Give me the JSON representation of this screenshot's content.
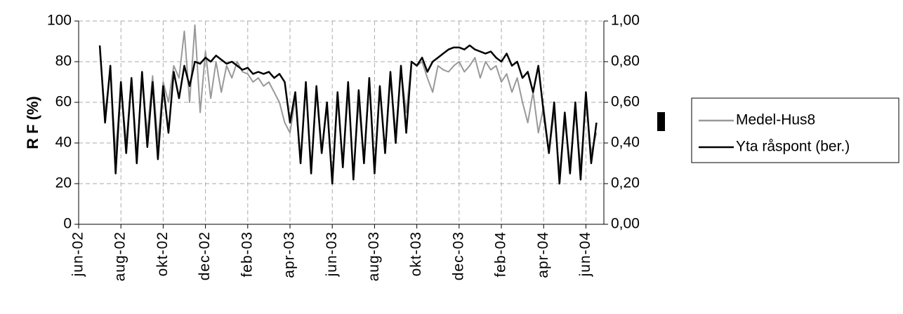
{
  "chart_data": {
    "type": "line",
    "y_label": "R F (%)",
    "x": [
      1,
      1.25,
      1.5,
      1.75,
      2,
      2.25,
      2.5,
      2.75,
      3,
      3.25,
      3.5,
      3.75,
      4,
      4.25,
      4.5,
      4.75,
      5,
      5.25,
      5.5,
      5.75,
      6,
      6.25,
      6.5,
      6.75,
      7,
      7.25,
      7.5,
      7.75,
      8,
      8.25,
      8.5,
      8.75,
      9,
      9.25,
      9.5,
      9.75,
      10,
      10.25,
      10.5,
      10.75,
      11,
      11.25,
      11.5,
      11.75,
      12,
      12.25,
      12.5,
      12.75,
      13,
      13.25,
      13.5,
      13.75,
      14,
      14.25,
      14.5,
      14.75,
      15,
      15.25,
      15.5,
      15.75,
      16,
      16.25,
      16.5,
      16.75,
      17,
      17.25,
      17.5,
      17.75,
      18,
      18.25,
      18.5,
      18.75,
      19,
      19.25,
      19.5,
      19.75,
      20,
      20.25,
      20.5,
      20.75,
      21,
      21.25,
      21.5,
      21.75,
      22,
      22.25,
      22.5,
      22.75,
      23,
      23.25,
      23.5,
      23.75,
      24,
      24.25,
      24.5
    ],
    "xlim": [
      0,
      24.85
    ],
    "xticks": [
      {
        "value": 0,
        "label": "jun-02"
      },
      {
        "value": 2,
        "label": "aug-02"
      },
      {
        "value": 4,
        "label": "okt-02"
      },
      {
        "value": 6,
        "label": "dec-02"
      },
      {
        "value": 8,
        "label": "feb-03"
      },
      {
        "value": 10,
        "label": "apr-03"
      },
      {
        "value": 12,
        "label": "jun-03"
      },
      {
        "value": 14,
        "label": "aug-03"
      },
      {
        "value": 16,
        "label": "okt-03"
      },
      {
        "value": 18,
        "label": "dec-03"
      },
      {
        "value": 20,
        "label": "feb-04"
      },
      {
        "value": 22,
        "label": "apr-04"
      },
      {
        "value": 24,
        "label": "jun-04"
      }
    ],
    "ylim": [
      0,
      100
    ],
    "yticks": [
      0,
      20,
      40,
      60,
      80,
      100
    ],
    "y2lim": [
      0,
      1
    ],
    "y2ticks": [
      {
        "value": 0,
        "label": "0,00"
      },
      {
        "value": 0.2,
        "label": "0,20"
      },
      {
        "value": 0.4,
        "label": "0,40"
      },
      {
        "value": 0.6,
        "label": "0,60"
      },
      {
        "value": 0.8,
        "label": "0,80"
      },
      {
        "value": 1,
        "label": "1,00"
      }
    ],
    "grid": true,
    "series": [
      {
        "name": "Medel-Hus8",
        "color": "#999999",
        "values": [
          85,
          55,
          75,
          35,
          68,
          40,
          72,
          35,
          70,
          45,
          73,
          40,
          70,
          60,
          78,
          72,
          95,
          60,
          98,
          55,
          85,
          62,
          80,
          65,
          78,
          72,
          80,
          75,
          74,
          70,
          72,
          68,
          70,
          65,
          60,
          50,
          45,
          62,
          30,
          68,
          28,
          65,
          35,
          58,
          22,
          62,
          30,
          65,
          25,
          60,
          30,
          70,
          28,
          66,
          35,
          72,
          45,
          76,
          55,
          80,
          78,
          80,
          72,
          65,
          78,
          76,
          75,
          78,
          80,
          75,
          78,
          82,
          72,
          80,
          76,
          78,
          70,
          74,
          65,
          72,
          60,
          50,
          65,
          45,
          58,
          35,
          55,
          25,
          50,
          30,
          55,
          28,
          60,
          35,
          45
        ]
      },
      {
        "name": "Yta råspont (ber.)",
        "color": "#000000",
        "axis": "y2",
        "values": [
          0.88,
          0.5,
          0.78,
          0.25,
          0.7,
          0.35,
          0.72,
          0.3,
          0.75,
          0.38,
          0.7,
          0.32,
          0.68,
          0.45,
          0.75,
          0.62,
          0.78,
          0.68,
          0.8,
          0.79,
          0.82,
          0.8,
          0.83,
          0.81,
          0.79,
          0.8,
          0.78,
          0.76,
          0.77,
          0.74,
          0.75,
          0.74,
          0.75,
          0.72,
          0.74,
          0.7,
          0.5,
          0.65,
          0.3,
          0.7,
          0.25,
          0.68,
          0.35,
          0.6,
          0.2,
          0.65,
          0.28,
          0.7,
          0.22,
          0.66,
          0.3,
          0.72,
          0.25,
          0.68,
          0.35,
          0.75,
          0.4,
          0.78,
          0.45,
          0.8,
          0.78,
          0.82,
          0.75,
          0.8,
          0.82,
          0.84,
          0.86,
          0.87,
          0.87,
          0.86,
          0.88,
          0.86,
          0.85,
          0.84,
          0.85,
          0.82,
          0.8,
          0.84,
          0.78,
          0.8,
          0.72,
          0.75,
          0.65,
          0.78,
          0.55,
          0.35,
          0.6,
          0.2,
          0.55,
          0.25,
          0.6,
          0.22,
          0.65,
          0.3,
          0.5
        ]
      }
    ]
  }
}
